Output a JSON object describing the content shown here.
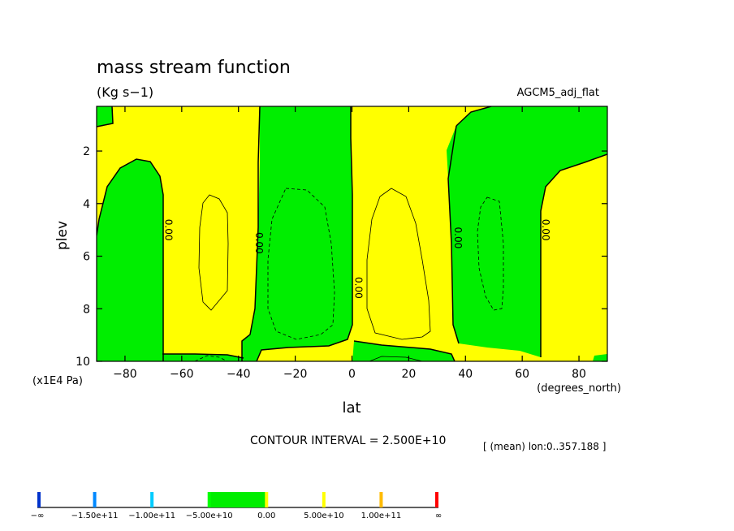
{
  "chart_data": {
    "type": "contour",
    "title": "mass stream function",
    "subtitle": "(Kg s−1)",
    "run_label": "AGCM5_adj_flat",
    "xlabel": "lat",
    "x_units": "(degrees_north)",
    "ylabel": "plev",
    "y_units": "(x1E4 Pa)",
    "xlim": [
      -90,
      90
    ],
    "ylim": [
      0.3,
      10
    ],
    "y_inverted": true,
    "x_ticks": [
      -80,
      -60,
      -40,
      -20,
      0,
      20,
      40,
      60,
      80
    ],
    "y_ticks": [
      2,
      4,
      6,
      8,
      10
    ],
    "zero_line_labels": [
      {
        "lat": -67,
        "plev": 5.0,
        "text": "0.00"
      },
      {
        "lat": -35,
        "plev": 5.5,
        "text": "0.00"
      },
      {
        "lat": 0,
        "plev": 7.2,
        "text": "0.00"
      },
      {
        "lat": 35,
        "plev": 5.3,
        "text": "0.00"
      },
      {
        "lat": 66,
        "plev": 5.0,
        "text": "0.00"
      }
    ],
    "regions": [
      {
        "sign": "negative",
        "lat_range": [
          -90,
          -67
        ],
        "plev_range": [
          2.2,
          10
        ],
        "desc": "southern polar cell"
      },
      {
        "sign": "positive",
        "lat_range": [
          -65,
          -37
        ],
        "plev_range": [
          0.3,
          9.3
        ],
        "desc": "southern mid-latitude cell"
      },
      {
        "sign": "negative",
        "lat_range": [
          -36,
          1
        ],
        "plev_range": [
          0.3,
          9.6
        ],
        "desc": "southern tropical cell"
      },
      {
        "sign": "positive",
        "lat_range": [
          2,
          33
        ],
        "plev_range": [
          0.3,
          9.7
        ],
        "desc": "northern tropical cell"
      },
      {
        "sign": "negative",
        "lat_range": [
          36,
          64
        ],
        "plev_range": [
          0.3,
          9.6
        ],
        "desc": "northern mid-latitude cell"
      },
      {
        "sign": "positive",
        "lat_range": [
          66,
          90
        ],
        "plev_range": [
          2.0,
          10
        ],
        "desc": "northern polar cell"
      }
    ],
    "contour_interval_text": "CONTOUR INTERVAL = 2.500E+10",
    "mean_text": "[ (mean) lon:0..357.188 ]",
    "colorbar": {
      "labels": [
        "−∞",
        "−1.50e+11",
        "−1.00e+11",
        "−5.00e+10",
        "0.00",
        "5.00e+10",
        "1.00e+11",
        "∞"
      ],
      "colors": [
        "#0033cc",
        "#0088ff",
        "#00ccff",
        "#00ff00",
        "#ffff00",
        "#ffbb00",
        "#ff0000"
      ],
      "fill_colors": {
        "negative": "#00ee00",
        "positive": "#ffff00"
      }
    }
  }
}
